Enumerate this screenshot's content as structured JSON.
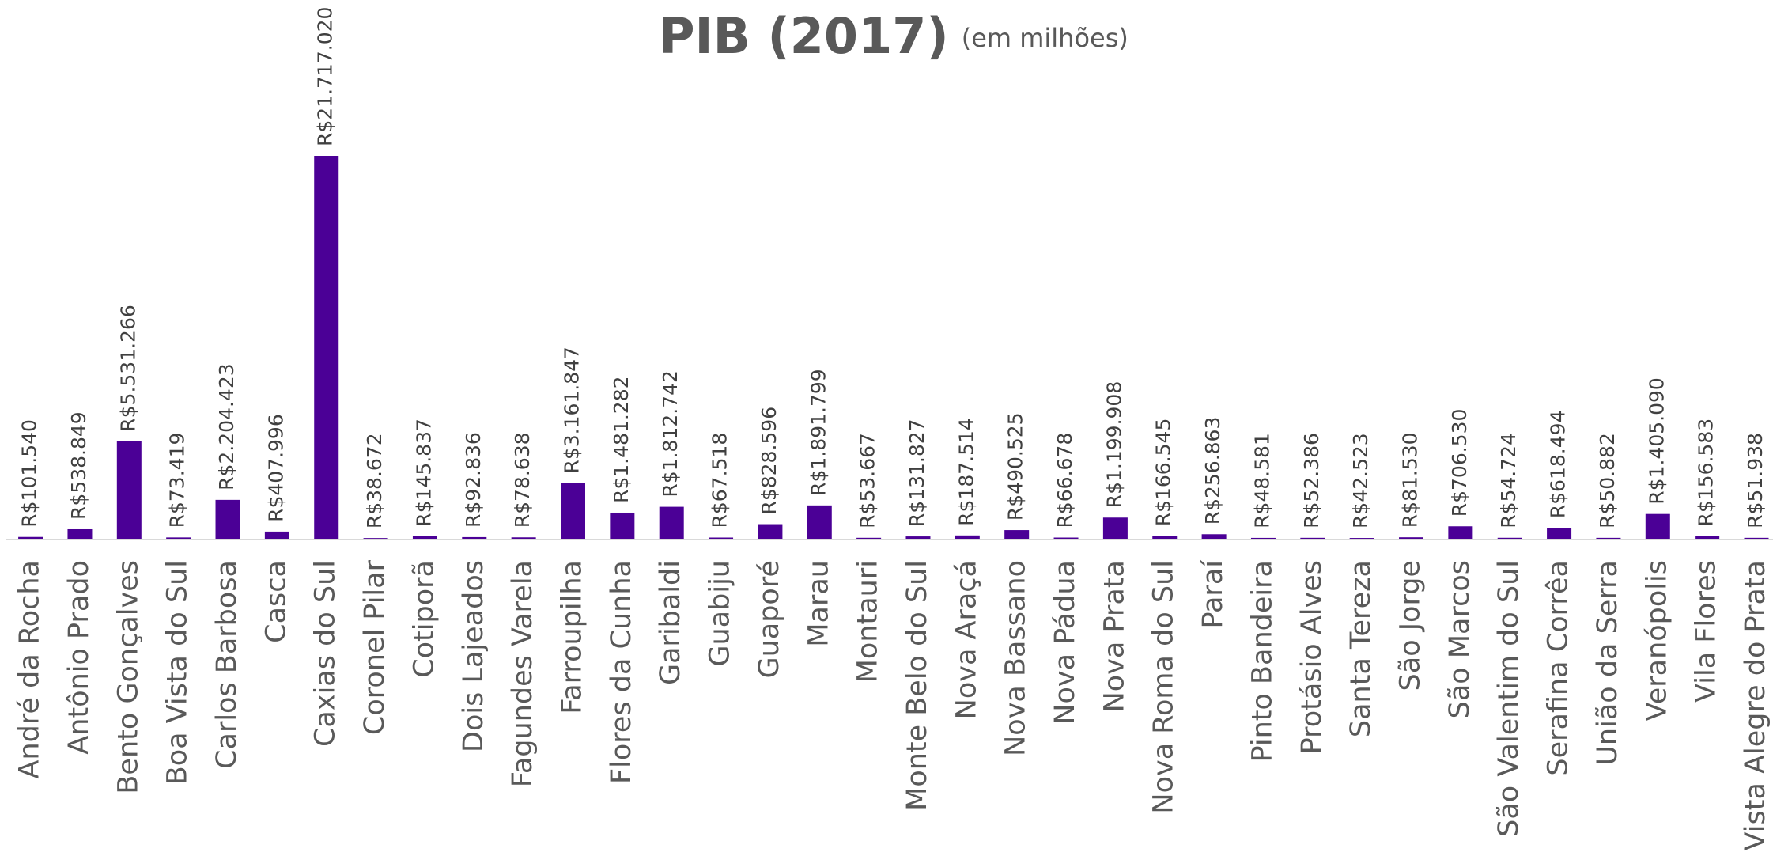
{
  "chart_data": {
    "type": "bar",
    "title": "PIB (2017)",
    "subtitle": "(em milhões)",
    "color": "#4b0096",
    "categories": [
      "André da Rocha",
      "Antônio Prado",
      "Bento Gonçalves",
      "Boa Vista do Sul",
      "Carlos Barbosa",
      "Casca",
      "Caxias do Sul",
      "Coronel Pilar",
      "Cotiporã",
      "Dois Lajeados",
      "Fagundes Varela",
      "Farroupilha",
      "Flores da Cunha",
      "Garibaldi",
      "Guabiju",
      "Guaporé",
      "Marau",
      "Montauri",
      "Monte Belo do Sul",
      "Nova Araçá",
      "Nova Bassano",
      "Nova Pádua",
      "Nova Prata",
      "Nova Roma do Sul",
      "Paraí",
      "Pinto Bandeira",
      "Protásio Alves",
      "Santa Tereza",
      "São Jorge",
      "São Marcos",
      "São Valentim do Sul",
      "Serafina Corrêa",
      "União da Serra",
      "Veranópolis",
      "Vila Flores",
      "Vista Alegre do Prata"
    ],
    "values": [
      101540,
      538849,
      5531266,
      73419,
      2204423,
      407996,
      21717020,
      38672,
      145837,
      92836,
      78638,
      3161847,
      1481282,
      1812742,
      67518,
      828596,
      1891799,
      53667,
      131827,
      187514,
      490525,
      66678,
      1199908,
      166545,
      256863,
      48581,
      52386,
      42523,
      81530,
      706530,
      54724,
      618494,
      50882,
      1405090,
      156583,
      51938
    ],
    "value_labels": [
      "R$101.540",
      "R$538.849",
      "R$5.531.266",
      "R$73.419",
      "R$2.204.423",
      "R$407.996",
      "R$21.717.020",
      "R$38.672",
      "R$145.837",
      "R$92.836",
      "R$78.638",
      "R$3.161.847",
      "R$1.481.282",
      "R$1.812.742",
      "R$67.518",
      "R$828.596",
      "R$1.891.799",
      "R$53.667",
      "R$131.827",
      "R$187.514",
      "R$490.525",
      "R$66.678",
      "R$1.199.908",
      "R$166.545",
      "R$256.863",
      "R$48.581",
      "R$52.386",
      "R$42.523",
      "R$81.530",
      "R$706.530",
      "R$54.724",
      "R$618.494",
      "R$50.882",
      "R$1.405.090",
      "R$156.583",
      "R$51.938"
    ]
  }
}
